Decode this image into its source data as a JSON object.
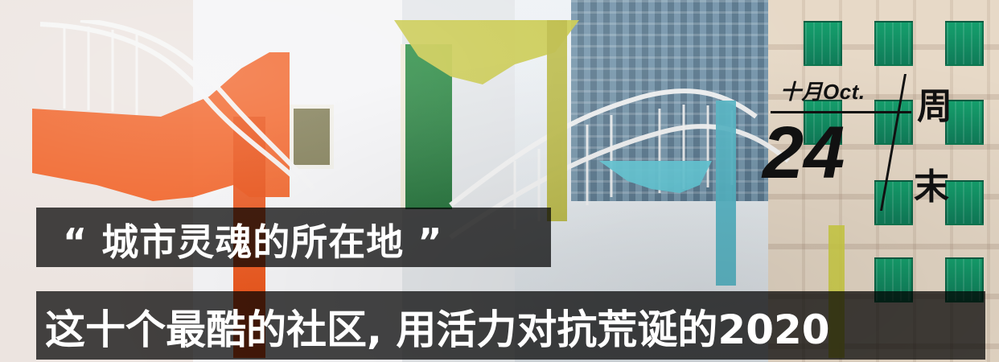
{
  "banner": {
    "date_stamp": {
      "month": "十月Oct.",
      "day": "24",
      "week_part1": "周",
      "week_part2": "末"
    },
    "quote_line": "“ 城市灵魂的所在地 ”",
    "headline": "这十个最酷的社区, 用活力对抗荒诞的2020",
    "colors": {
      "overlay": "#000000",
      "text": "#FFFFFF",
      "stamp_text": "#111111",
      "stair_orange": "#F05A1A",
      "stair_yellow": "#C8C84A",
      "stair_cyan": "#63C7D6",
      "window_green": "#14A06D"
    }
  }
}
